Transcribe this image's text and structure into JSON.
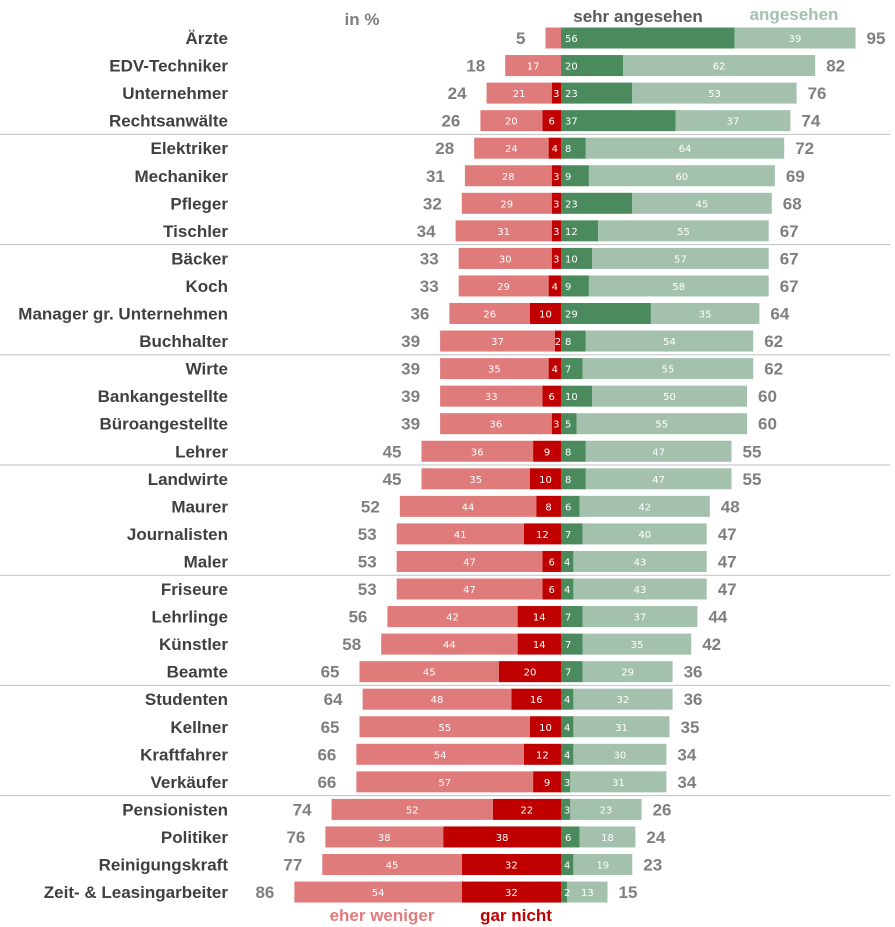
{
  "chart_data": {
    "type": "bar",
    "unit_label": "in %",
    "legend": {
      "sehr_angesehen": "sehr angesehen",
      "angesehen": "angesehen",
      "eher_weniger": "eher weniger",
      "gar_nicht": "gar nicht"
    },
    "colors": {
      "sehr_angesehen": "#4a8a5c",
      "angesehen": "#a3c1ad",
      "eher_weniger": "#e07b7b",
      "gar_nicht": "#c00000",
      "neg_total": "#7f7f7f",
      "pos_total": "#7f7f7f",
      "label": "#404040",
      "separator": "#bfbfbf"
    },
    "series": [
      {
        "key": "eher_weniger",
        "name": "eher weniger"
      },
      {
        "key": "gar_nicht",
        "name": "gar nicht"
      },
      {
        "key": "sehr_angesehen",
        "name": "sehr angesehen"
      },
      {
        "key": "angesehen",
        "name": "angesehen"
      }
    ],
    "rows": [
      {
        "label": "Ärzte",
        "eher_weniger": null,
        "gar_nicht": null,
        "sehr_angesehen": 56,
        "angesehen": 39,
        "neg_total": 5,
        "pos_total": 95
      },
      {
        "label": "EDV-Techniker",
        "eher_weniger": 17,
        "gar_nicht": null,
        "sehr_angesehen": 20,
        "angesehen": 62,
        "neg_total": 18,
        "pos_total": 82
      },
      {
        "label": "Unternehmer",
        "eher_weniger": 21,
        "gar_nicht": 3,
        "sehr_angesehen": 23,
        "angesehen": 53,
        "neg_total": 24,
        "pos_total": 76
      },
      {
        "label": "Rechtsanwälte",
        "eher_weniger": 20,
        "gar_nicht": 6,
        "sehr_angesehen": 37,
        "angesehen": 37,
        "neg_total": 26,
        "pos_total": 74
      },
      {
        "label": "Elektriker",
        "eher_weniger": 24,
        "gar_nicht": 4,
        "sehr_angesehen": 8,
        "angesehen": 64,
        "neg_total": 28,
        "pos_total": 72
      },
      {
        "label": "Mechaniker",
        "eher_weniger": 28,
        "gar_nicht": 3,
        "sehr_angesehen": 9,
        "angesehen": 60,
        "neg_total": 31,
        "pos_total": 69
      },
      {
        "label": "Pfleger",
        "eher_weniger": 29,
        "gar_nicht": 3,
        "sehr_angesehen": 23,
        "angesehen": 45,
        "neg_total": 32,
        "pos_total": 68
      },
      {
        "label": "Tischler",
        "eher_weniger": 31,
        "gar_nicht": 3,
        "sehr_angesehen": 12,
        "angesehen": 55,
        "neg_total": 34,
        "pos_total": 67
      },
      {
        "label": "Bäcker",
        "eher_weniger": 30,
        "gar_nicht": 3,
        "sehr_angesehen": 10,
        "angesehen": 57,
        "neg_total": 33,
        "pos_total": 67
      },
      {
        "label": "Koch",
        "eher_weniger": 29,
        "gar_nicht": 4,
        "sehr_angesehen": 9,
        "angesehen": 58,
        "neg_total": 33,
        "pos_total": 67
      },
      {
        "label": "Manager gr. Unternehmen",
        "eher_weniger": 26,
        "gar_nicht": 10,
        "sehr_angesehen": 29,
        "angesehen": 35,
        "neg_total": 36,
        "pos_total": 64
      },
      {
        "label": "Buchhalter",
        "eher_weniger": 37,
        "gar_nicht": 2,
        "sehr_angesehen": 8,
        "angesehen": 54,
        "neg_total": 39,
        "pos_total": 62
      },
      {
        "label": "Wirte",
        "eher_weniger": 35,
        "gar_nicht": 4,
        "sehr_angesehen": 7,
        "angesehen": 55,
        "neg_total": 39,
        "pos_total": 62
      },
      {
        "label": "Bankangestellte",
        "eher_weniger": 33,
        "gar_nicht": 6,
        "sehr_angesehen": 10,
        "angesehen": 50,
        "neg_total": 39,
        "pos_total": 60
      },
      {
        "label": "Büroangestellte",
        "eher_weniger": 36,
        "gar_nicht": 3,
        "sehr_angesehen": 5,
        "angesehen": 55,
        "neg_total": 39,
        "pos_total": 60
      },
      {
        "label": "Lehrer",
        "eher_weniger": 36,
        "gar_nicht": 9,
        "sehr_angesehen": 8,
        "angesehen": 47,
        "neg_total": 45,
        "pos_total": 55
      },
      {
        "label": "Landwirte",
        "eher_weniger": 35,
        "gar_nicht": 10,
        "sehr_angesehen": 8,
        "angesehen": 47,
        "neg_total": 45,
        "pos_total": 55
      },
      {
        "label": "Maurer",
        "eher_weniger": 44,
        "gar_nicht": 8,
        "sehr_angesehen": 6,
        "angesehen": 42,
        "neg_total": 52,
        "pos_total": 48
      },
      {
        "label": "Journalisten",
        "eher_weniger": 41,
        "gar_nicht": 12,
        "sehr_angesehen": 7,
        "angesehen": 40,
        "neg_total": 53,
        "pos_total": 47
      },
      {
        "label": "Maler",
        "eher_weniger": 47,
        "gar_nicht": 6,
        "sehr_angesehen": 4,
        "angesehen": 43,
        "neg_total": 53,
        "pos_total": 47
      },
      {
        "label": "Friseure",
        "eher_weniger": 47,
        "gar_nicht": 6,
        "sehr_angesehen": 4,
        "angesehen": 43,
        "neg_total": 53,
        "pos_total": 47
      },
      {
        "label": "Lehrlinge",
        "eher_weniger": 42,
        "gar_nicht": 14,
        "sehr_angesehen": 7,
        "angesehen": 37,
        "neg_total": 56,
        "pos_total": 44
      },
      {
        "label": "Künstler",
        "eher_weniger": 44,
        "gar_nicht": 14,
        "sehr_angesehen": 7,
        "angesehen": 35,
        "neg_total": 58,
        "pos_total": 42
      },
      {
        "label": "Beamte",
        "eher_weniger": 45,
        "gar_nicht": 20,
        "sehr_angesehen": 7,
        "angesehen": 29,
        "neg_total": 65,
        "pos_total": 36
      },
      {
        "label": "Studenten",
        "eher_weniger": 48,
        "gar_nicht": 16,
        "sehr_angesehen": 4,
        "angesehen": 32,
        "neg_total": 64,
        "pos_total": 36
      },
      {
        "label": "Kellner",
        "eher_weniger": 55,
        "gar_nicht": 10,
        "sehr_angesehen": 4,
        "angesehen": 31,
        "neg_total": 65,
        "pos_total": 35
      },
      {
        "label": "Kraftfahrer",
        "eher_weniger": 54,
        "gar_nicht": 12,
        "sehr_angesehen": 4,
        "angesehen": 30,
        "neg_total": 66,
        "pos_total": 34
      },
      {
        "label": "Verkäufer",
        "eher_weniger": 57,
        "gar_nicht": 9,
        "sehr_angesehen": 3,
        "angesehen": 31,
        "neg_total": 66,
        "pos_total": 34
      },
      {
        "label": "Pensionisten",
        "eher_weniger": 52,
        "gar_nicht": 22,
        "sehr_angesehen": 3,
        "angesehen": 23,
        "neg_total": 74,
        "pos_total": 26
      },
      {
        "label": "Politiker",
        "eher_weniger": 38,
        "gar_nicht": 38,
        "sehr_angesehen": 6,
        "angesehen": 18,
        "neg_total": 76,
        "pos_total": 24
      },
      {
        "label": "Reinigungskraft",
        "eher_weniger": 45,
        "gar_nicht": 32,
        "sehr_angesehen": 4,
        "angesehen": 19,
        "neg_total": 77,
        "pos_total": 23
      },
      {
        "label": "Zeit- & Leasingarbeiter",
        "eher_weniger": 54,
        "gar_nicht": 32,
        "sehr_angesehen": 2,
        "angesehen": 13,
        "neg_total": 86,
        "pos_total": 15
      }
    ],
    "group_breaks_after": [
      "Rechtsanwälte",
      "Tischler",
      "Buchhalter",
      "Lehrer",
      "Maler",
      "Beamte",
      "Verkäufer"
    ]
  }
}
